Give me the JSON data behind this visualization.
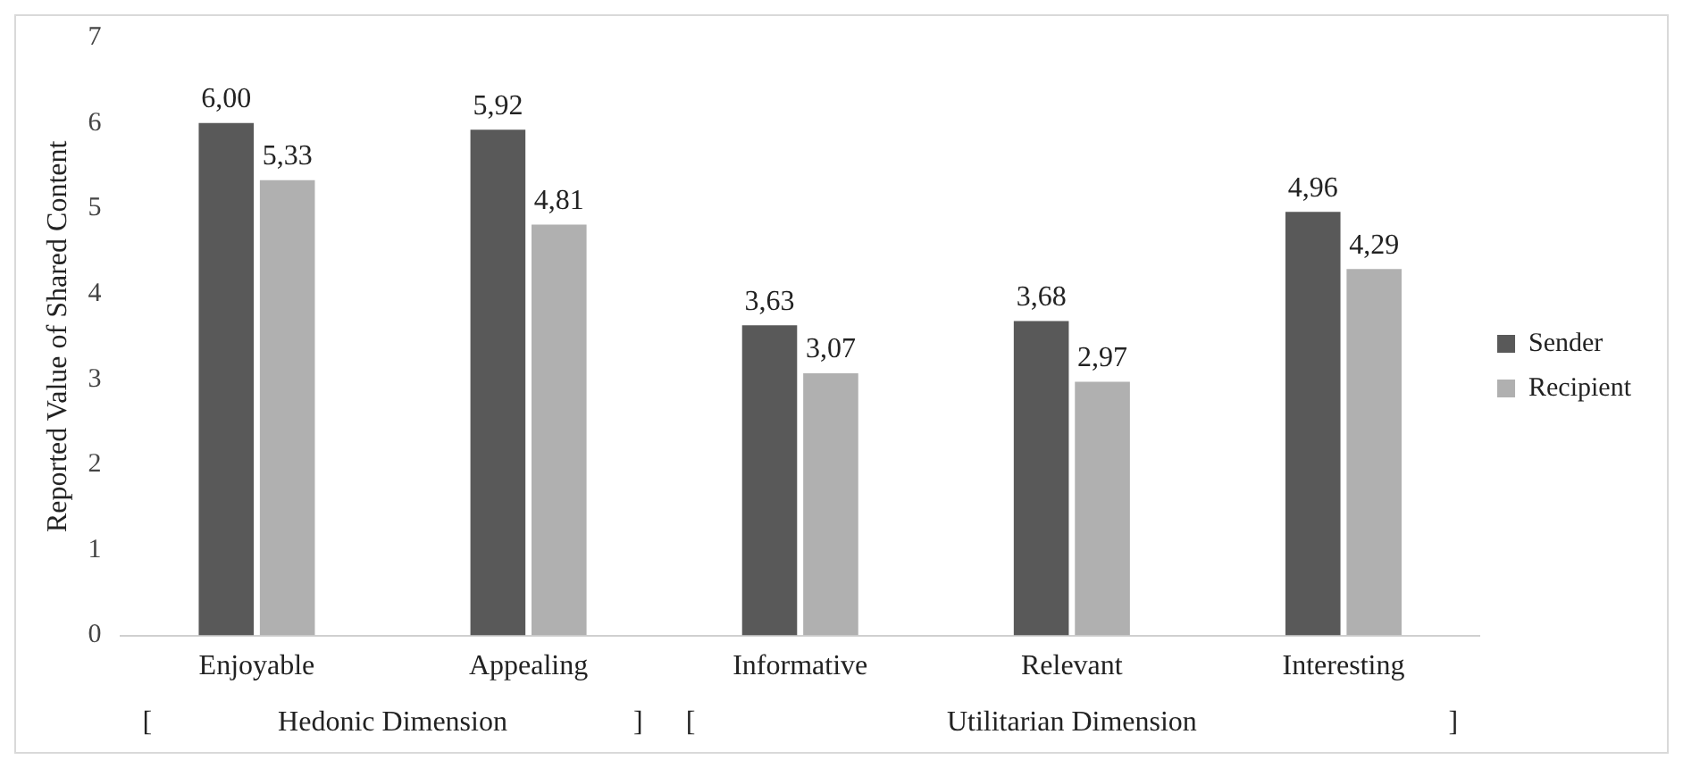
{
  "chart_data": {
    "type": "bar",
    "ylabel": "Reported Value of Shared Content",
    "categories": [
      "Enjoyable",
      "Appealing",
      "Informative",
      "Relevant",
      "Interesting"
    ],
    "series": [
      {
        "name": "Sender",
        "color": "#595959",
        "values": [
          6.0,
          5.92,
          3.63,
          3.68,
          4.96
        ],
        "value_labels": [
          "6,00",
          "5,92",
          "3,63",
          "3,68",
          "4,96"
        ]
      },
      {
        "name": "Recipient",
        "color": "#b0b0b0",
        "values": [
          5.33,
          4.81,
          3.07,
          2.97,
          4.29
        ],
        "value_labels": [
          "5,33",
          "4,81",
          "3,07",
          "2,97",
          "4,29"
        ]
      }
    ],
    "ylim": [
      0,
      7
    ],
    "yticks": [
      0,
      1,
      2,
      3,
      4,
      5,
      6,
      7
    ],
    "grid": false,
    "legend": "right",
    "annotations": [
      "[",
      "Hedonic Dimension",
      "]",
      "[",
      "Utilitarian Dimension",
      "]"
    ]
  }
}
